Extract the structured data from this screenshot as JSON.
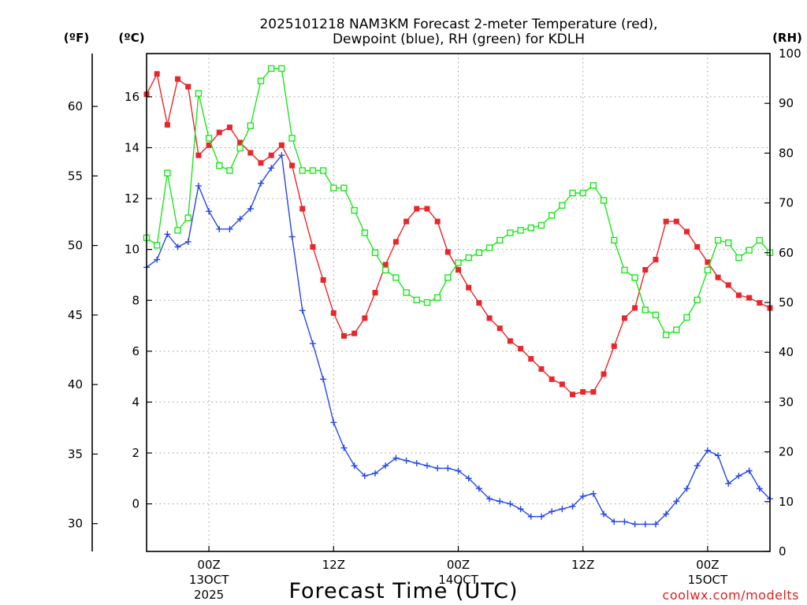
{
  "chart_data": {
    "type": "line",
    "title_lines": [
      "2025101218 NAM3KM Forecast 2-meter Temperature (red),",
      "Dewpoint (blue), RH (green) for KDLH"
    ],
    "xlabel": "Forecast Time (UTC)",
    "credit": "coolwx.com/modelts",
    "axes": {
      "fahrenheit": {
        "label": "(ºF)",
        "range": [
          28,
          63.8
        ],
        "ticks": [
          30,
          35,
          40,
          45,
          50,
          55,
          60
        ]
      },
      "celsius": {
        "label": "(ºC)",
        "range": [
          -1.87,
          17.7
        ],
        "ticks": [
          0,
          2,
          4,
          6,
          8,
          10,
          12,
          14,
          16
        ]
      },
      "rh": {
        "label": "(RH)",
        "range": [
          0,
          100
        ],
        "ticks": [
          0,
          10,
          20,
          30,
          40,
          50,
          60,
          70,
          80,
          90,
          100
        ]
      }
    },
    "x_range_hours": [
      18,
      78
    ],
    "x_ticks": [
      {
        "hour": 24,
        "label": "00Z",
        "sub1": "13OCT",
        "sub2": "2025"
      },
      {
        "hour": 36,
        "label": "12Z",
        "sub1": "",
        "sub2": ""
      },
      {
        "hour": 48,
        "label": "00Z",
        "sub1": "14OCT",
        "sub2": ""
      },
      {
        "hour": 60,
        "label": "12Z",
        "sub1": "",
        "sub2": ""
      },
      {
        "hour": 72,
        "label": "00Z",
        "sub1": "15OCT",
        "sub2": ""
      }
    ],
    "series": [
      {
        "name": "2-meter Temperature",
        "units": "°C",
        "color": "#e8262b",
        "marker": "filled-square",
        "values": [
          16.1,
          16.9,
          14.9,
          16.7,
          16.4,
          13.7,
          14.1,
          14.6,
          14.8,
          14.2,
          13.8,
          13.4,
          13.7,
          14.1,
          13.3,
          11.6,
          10.1,
          8.8,
          7.5,
          6.6,
          6.7,
          7.3,
          8.3,
          9.4,
          10.3,
          11.1,
          11.6,
          11.6,
          11.1,
          9.9,
          9.2,
          8.5,
          7.9,
          7.3,
          6.9,
          6.4,
          6.1,
          5.7,
          5.3,
          4.9,
          4.7,
          4.3,
          4.4,
          4.4,
          5.1,
          6.2,
          7.3,
          7.7,
          9.2,
          9.6,
          11.1,
          11.1,
          10.7,
          10.1,
          9.5,
          8.9,
          8.6,
          8.2,
          8.1,
          7.9,
          7.7
        ]
      },
      {
        "name": "Dewpoint",
        "units": "°C",
        "color": "#2647e8",
        "marker": "plus",
        "values": [
          9.3,
          9.6,
          10.6,
          10.1,
          10.3,
          12.5,
          11.5,
          10.8,
          10.8,
          11.2,
          11.6,
          12.6,
          13.2,
          13.7,
          10.5,
          7.6,
          6.3,
          4.9,
          3.2,
          2.2,
          1.5,
          1.1,
          1.2,
          1.5,
          1.8,
          1.7,
          1.6,
          1.5,
          1.4,
          1.4,
          1.3,
          1.0,
          0.6,
          0.2,
          0.1,
          0.0,
          -0.2,
          -0.5,
          -0.5,
          -0.3,
          -0.2,
          -0.1,
          0.3,
          0.4,
          -0.4,
          -0.7,
          -0.7,
          -0.8,
          -0.8,
          -0.8,
          -0.4,
          0.1,
          0.6,
          1.5,
          2.1,
          1.9,
          0.8,
          1.1,
          1.3,
          0.6,
          0.2
        ]
      },
      {
        "name": "RH",
        "units": "%",
        "color": "#1ee61e",
        "marker": "open-square",
        "values": [
          63.0,
          61.5,
          76.0,
          64.5,
          67.0,
          92.0,
          83.0,
          77.5,
          76.5,
          81.0,
          85.5,
          94.5,
          97.0,
          97.0,
          83.0,
          76.5,
          76.5,
          76.5,
          73.0,
          73.0,
          68.5,
          64.0,
          60.0,
          56.5,
          55.0,
          52.0,
          50.5,
          50.0,
          51.0,
          55.0,
          58.0,
          59.0,
          60.0,
          61.0,
          62.5,
          64.0,
          64.5,
          65.0,
          65.5,
          67.5,
          69.5,
          72.0,
          72.0,
          73.5,
          70.5,
          62.5,
          56.5,
          55.0,
          48.5,
          47.5,
          43.5,
          44.5,
          47.0,
          50.5,
          56.5,
          62.5,
          62.0,
          59.0,
          60.5,
          62.5,
          60.0
        ]
      }
    ]
  }
}
